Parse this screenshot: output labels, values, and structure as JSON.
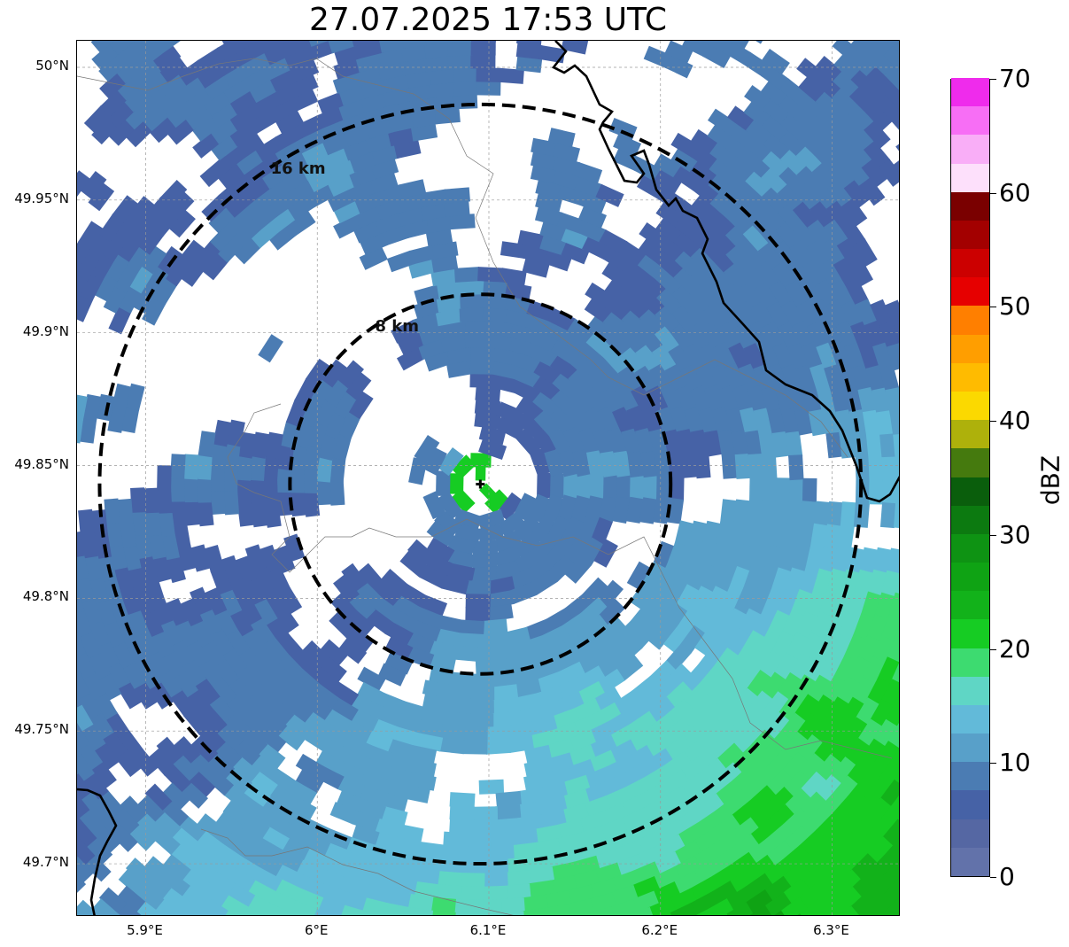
{
  "title": "27.07.2025 17:53 UTC",
  "map": {
    "lon_range": [
      5.86,
      6.34
    ],
    "lat_range": [
      49.68,
      50.01
    ],
    "center": {
      "lon": 6.095,
      "lat": 49.843
    },
    "rings": [
      {
        "label": "8 km",
        "radius_km": 8
      },
      {
        "label": "16 km",
        "radius_km": 16
      }
    ],
    "gridlines": true,
    "x_ticks": [
      {
        "value": 5.9,
        "label": "5.9°E"
      },
      {
        "value": 6.0,
        "label": "6°E"
      },
      {
        "value": 6.1,
        "label": "6.1°E"
      },
      {
        "value": 6.2,
        "label": "6.2°E"
      },
      {
        "value": 6.3,
        "label": "6.3°E"
      }
    ],
    "y_ticks": [
      {
        "value": 50.0,
        "label": "50°N"
      },
      {
        "value": 49.95,
        "label": "49.95°N"
      },
      {
        "value": 49.9,
        "label": "49.9°N"
      },
      {
        "value": 49.85,
        "label": "49.85°N"
      },
      {
        "value": 49.8,
        "label": "49.8°N"
      },
      {
        "value": 49.75,
        "label": "49.75°N"
      },
      {
        "value": 49.7,
        "label": "49.7°N"
      }
    ]
  },
  "colorbar": {
    "label": "dBZ",
    "min": 0,
    "max": 70,
    "ticks": [
      {
        "value": 0,
        "label": "0"
      },
      {
        "value": 10,
        "label": "10"
      },
      {
        "value": 20,
        "label": "20"
      },
      {
        "value": 30,
        "label": "30"
      },
      {
        "value": 40,
        "label": "40"
      },
      {
        "value": 50,
        "label": "50"
      },
      {
        "value": 60,
        "label": "60"
      },
      {
        "value": 70,
        "label": "70"
      }
    ],
    "colors": [
      "#6272aa",
      "#5567a3",
      "#4662a6",
      "#4b7cb3",
      "#58a0c9",
      "#62bad9",
      "#5fd6c5",
      "#3ddb70",
      "#16cc23",
      "#12b21a",
      "#0fa314",
      "#0e9313",
      "#0c7a10",
      "#0a5e0c",
      "#457a0e",
      "#aeb10b",
      "#fbd900",
      "#ffbb00",
      "#ff9e00",
      "#ff7f00",
      "#e60000",
      "#cc0000",
      "#a30000",
      "#7a0000",
      "#fde0fb",
      "#f9aef7",
      "#f76ef5",
      "#ef2bec"
    ]
  }
}
